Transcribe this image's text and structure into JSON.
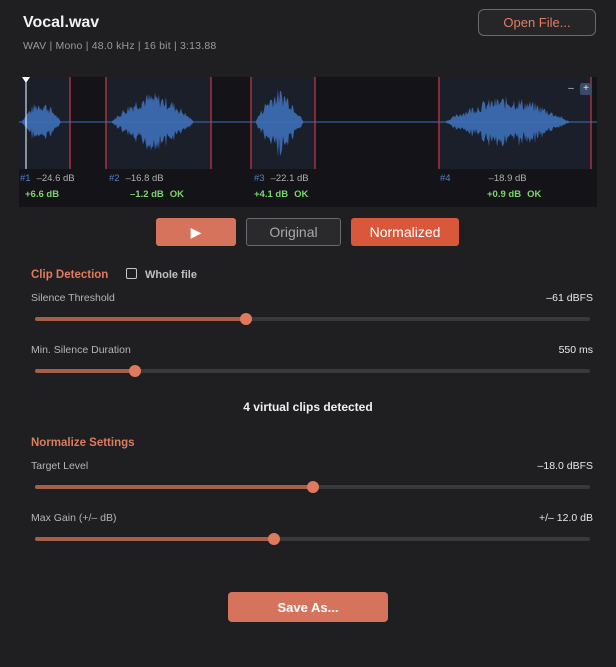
{
  "file": {
    "name": "Vocal.wav",
    "meta": "WAV  |  Mono  |  48.0 kHz  |  16 bit  |  3:13.88"
  },
  "header": {
    "open_label": "Open File..."
  },
  "waveform": {
    "zoom_minus": "–",
    "zoom_plus": "+",
    "clips": [
      {
        "num": "#1",
        "level": "–24.6 dB",
        "gain": "+6.6 dB",
        "status": ""
      },
      {
        "num": "#2",
        "level": "–16.8 dB",
        "gain": "–1.2 dB",
        "status": "OK"
      },
      {
        "num": "#3",
        "level": "–22.1 dB",
        "gain": "+4.1 dB",
        "status": "OK"
      },
      {
        "num": "#4",
        "level": "–18.9 dB",
        "gain": "+0.9 dB",
        "status": "OK"
      }
    ],
    "colors": {
      "wave": "#3d6fb8",
      "marker": "#c8384c",
      "playhead": "#ffffff"
    }
  },
  "transport": {
    "play_icon": "▶",
    "original_label": "Original",
    "normalized_label": "Normalized",
    "active": "Normalized"
  },
  "clip_detection": {
    "title": "Clip Detection",
    "whole_file_label": "Whole file",
    "whole_file_checked": false,
    "silence_threshold": {
      "label": "Silence Threshold",
      "value": "–61 dBFS",
      "level": 0.38
    },
    "min_silence": {
      "label": "Min. Silence Duration",
      "value": "550 ms",
      "level": 0.18
    },
    "detected_text": "4 virtual clips detected"
  },
  "normalize": {
    "title": "Normalize Settings",
    "target_level": {
      "label": "Target Level",
      "value": "–18.0 dBFS",
      "level": 0.5
    },
    "max_gain": {
      "label": "Max Gain (+/– dB)",
      "value": "+/– 12.0 dB",
      "level": 0.43
    }
  },
  "footer": {
    "save_label": "Save As..."
  },
  "colors": {
    "accent": "#d6735c",
    "accent_active": "#d9573a",
    "section": "#df7b5e",
    "ok": "#7bd66d"
  }
}
